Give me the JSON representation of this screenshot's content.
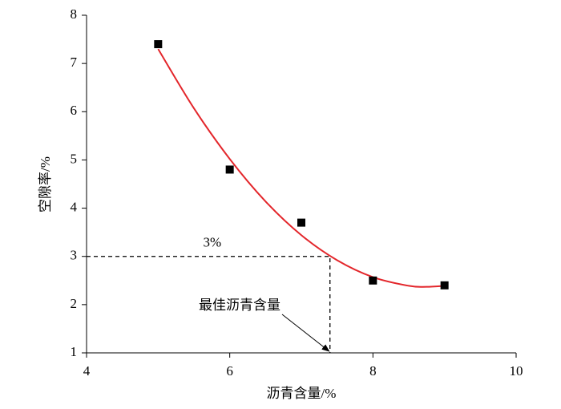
{
  "chart_data": {
    "type": "scatter",
    "x_label": "沥青含量/%",
    "y_label": "空隙率/%",
    "x": [
      5,
      6,
      7,
      8,
      9
    ],
    "values": [
      7.4,
      4.8,
      3.7,
      2.5,
      2.4
    ],
    "color": "#000000",
    "fit": {
      "x": [
        5,
        5.5,
        6,
        6.5,
        7,
        7.5,
        8,
        8.5,
        8.75,
        9
      ],
      "values": [
        7.3,
        6.07,
        5.02,
        4.14,
        3.44,
        2.92,
        2.57,
        2.39,
        2.37,
        2.39
      ],
      "color": "#e3262b"
    },
    "reference": {
      "x": 7.4,
      "y": 3
    },
    "annotations": [
      {
        "text": "3%"
      },
      {
        "text": "最佳沥青含量"
      }
    ],
    "xlim": [
      4,
      10
    ],
    "xticks": [
      4,
      6,
      8,
      10
    ],
    "ylim": [
      1,
      8
    ],
    "yticks": [
      1,
      2,
      3,
      4,
      5,
      6,
      7,
      8
    ]
  }
}
